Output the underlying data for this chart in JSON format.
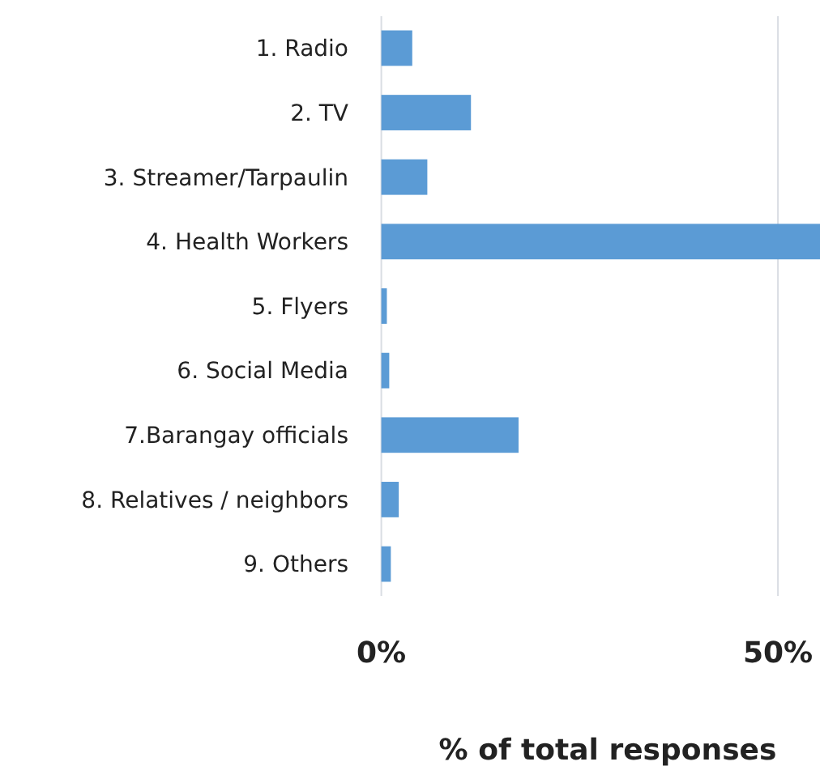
{
  "chart_data": {
    "type": "bar",
    "orientation": "horizontal",
    "xlabel": "% of total responses",
    "categories": [
      "1. Radio",
      "2. TV",
      "3. Streamer/Tarpaulin",
      "4. Health Workers",
      "5. Flyers",
      "6. Social Media",
      "7.Barangay officials",
      "8. Relatives / neighbors",
      "9. Others"
    ],
    "values": [
      3.9,
      11.3,
      5.8,
      55.3,
      0.7,
      1.0,
      17.3,
      2.2,
      1.2
    ],
    "color": "#5b9bd5",
    "xlim": [
      0,
      55.3
    ],
    "xticks": [
      {
        "value": 0,
        "label": "0%"
      },
      {
        "value": 50,
        "label": "50%"
      }
    ],
    "grid": "x"
  }
}
